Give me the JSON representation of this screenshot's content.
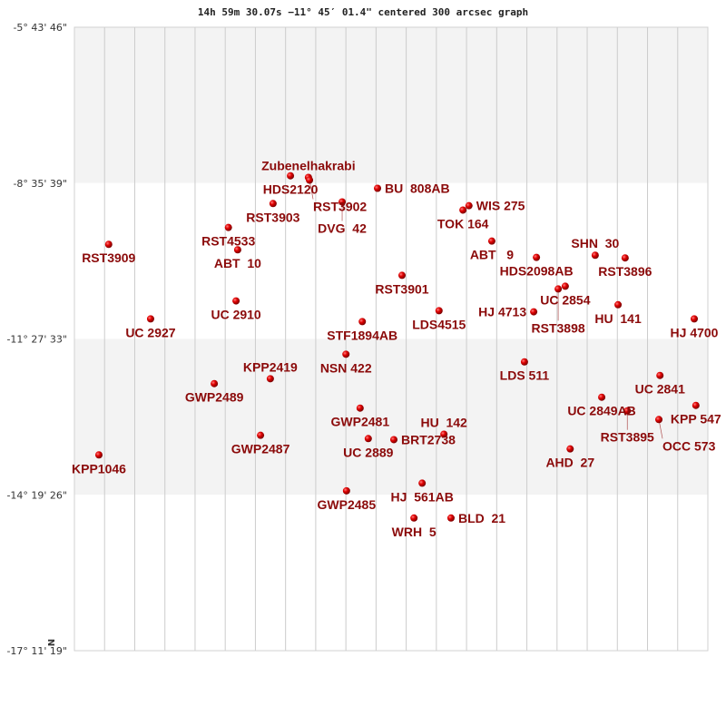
{
  "chart_data": {
    "type": "scatter",
    "title": "14h 59m 30.07s −11° 45′ 01.4\" centered 300 arcsec graph",
    "ylabel": "",
    "xlabel": "",
    "orientation_label": "N",
    "ylim": [
      -17.1886,
      -5.7294
    ],
    "xlim": [
      -5.82,
      5.82
    ],
    "y_ticks": [
      {
        "value": -5.7294,
        "label": "-5° 43' 46\""
      },
      {
        "value": -8.5942,
        "label": "-8° 35' 39\""
      },
      {
        "value": -11.4592,
        "label": "-11° 27' 33\""
      },
      {
        "value": -14.3239,
        "label": "-14° 19' 26\""
      },
      {
        "value": -17.1886,
        "label": "-17° 11' 19\""
      }
    ],
    "grid": true,
    "band_colors": [
      "#f3f3f3",
      "#ffffff"
    ],
    "point_color": "#dd0000",
    "label_color": "#8b0a0a",
    "points": [
      {
        "name": "RST3909",
        "x": -5.19,
        "y": -9.72
      },
      {
        "name": "UC 2927",
        "x": -4.42,
        "y": -11.09
      },
      {
        "name": "RST4533",
        "x": -2.99,
        "y": -9.41
      },
      {
        "name": "ABT  10",
        "x": -2.82,
        "y": -9.82
      },
      {
        "name": "UC 2910",
        "x": -2.85,
        "y": -10.76
      },
      {
        "name": "RST3903",
        "x": -2.17,
        "y": -8.97
      },
      {
        "name": "HDS2120",
        "x": -1.85,
        "y": -8.46
      },
      {
        "name": "Zubenelhakrabi",
        "x": -1.52,
        "y": -8.49
      },
      {
        "name": "RST3902",
        "x": -1.5,
        "y": -8.54
      },
      {
        "name": "BU  808AB",
        "x": -0.25,
        "y": -8.69
      },
      {
        "name": "DVG  42",
        "x": -0.9,
        "y": -8.94
      },
      {
        "name": "TOK 164",
        "x": 1.32,
        "y": -9.09
      },
      {
        "name": "WIS 275",
        "x": 1.43,
        "y": -9.01
      },
      {
        "name": "ABT   9",
        "x": 1.85,
        "y": -9.66
      },
      {
        "name": "HDS2098AB",
        "x": 2.67,
        "y": -9.96
      },
      {
        "name": "SHN  30",
        "x": 3.75,
        "y": -9.92
      },
      {
        "name": "RST3896",
        "x": 4.3,
        "y": -9.97
      },
      {
        "name": "UC 2854",
        "x": 3.2,
        "y": -10.49
      },
      {
        "name": "RST3898",
        "x": 3.07,
        "y": -10.54
      },
      {
        "name": "HU  141",
        "x": 4.17,
        "y": -10.83
      },
      {
        "name": "HJ 4713",
        "x": 2.62,
        "y": -10.96
      },
      {
        "name": "LDS4515",
        "x": 0.88,
        "y": -10.94
      },
      {
        "name": "HJ 4700",
        "x": 5.57,
        "y": -11.09
      },
      {
        "name": "RST3901",
        "x": 0.2,
        "y": -10.29
      },
      {
        "name": "STF1894AB",
        "x": -0.53,
        "y": -11.14
      },
      {
        "name": "NSN 422",
        "x": -0.83,
        "y": -11.74
      },
      {
        "name": "LDS 511",
        "x": 2.45,
        "y": -11.88
      },
      {
        "name": "GWP2489",
        "x": -3.25,
        "y": -12.28
      },
      {
        "name": "KPP2419",
        "x": -2.22,
        "y": -12.19
      },
      {
        "name": "UC 2841",
        "x": 4.94,
        "y": -12.13
      },
      {
        "name": "UC 2849AB",
        "x": 3.87,
        "y": -12.53
      },
      {
        "name": "RST3895",
        "x": 4.34,
        "y": -12.78
      },
      {
        "name": "KPP 547",
        "x": 5.6,
        "y": -12.68
      },
      {
        "name": "OCC 573",
        "x": 4.92,
        "y": -12.94
      },
      {
        "name": "GWP2481",
        "x": -0.57,
        "y": -12.73
      },
      {
        "name": "UC 2889",
        "x": -0.42,
        "y": -13.29
      },
      {
        "name": "BRT2738",
        "x": 0.05,
        "y": -13.31
      },
      {
        "name": "HU  142",
        "x": 0.97,
        "y": -13.21
      },
      {
        "name": "GWP2487",
        "x": -2.4,
        "y": -13.23
      },
      {
        "name": "KPP1046",
        "x": -5.37,
        "y": -13.59
      },
      {
        "name": "AHD  27",
        "x": 3.29,
        "y": -13.48
      },
      {
        "name": "HJ  561AB",
        "x": 0.57,
        "y": -14.11
      },
      {
        "name": "GWP2485",
        "x": -0.82,
        "y": -14.25
      },
      {
        "name": "WRH  5",
        "x": 0.42,
        "y": -14.75
      },
      {
        "name": "BLD  21",
        "x": 1.1,
        "y": -14.75
      }
    ]
  }
}
